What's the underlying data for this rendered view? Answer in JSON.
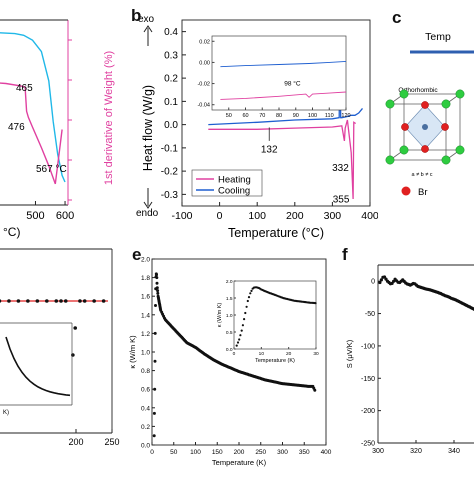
{
  "figure": {
    "panel_letters": {
      "b": "b",
      "c": "c",
      "e": "e",
      "f": "f"
    }
  },
  "colors": {
    "heating": "#e040a0",
    "cooling": "#1f5fd0",
    "tga": "#20b8e8",
    "dtg": "#e040a0",
    "fit_line": "#e02020",
    "atom_cs": "#2ecc40",
    "atom_br": "#e02020",
    "bar": "#2f5fb0"
  },
  "chart_data": [
    {
      "id": "a",
      "type": "line",
      "ylabel_right": "1st derivative of Weight (%)",
      "xlabel_fragment": "°C)",
      "x_ticks": [
        "500",
        "600"
      ],
      "annotations": [
        "465",
        "476",
        "567 °C"
      ],
      "series": [
        {
          "key": "tga",
          "x": [
            300,
            380,
            430,
            460,
            490,
            520,
            545,
            560,
            575,
            590,
            600
          ],
          "y": [
            100,
            99.5,
            99,
            98,
            95,
            88,
            70,
            45,
            25,
            12,
            8
          ]
        },
        {
          "key": "dtg",
          "x": [
            300,
            400,
            450,
            465,
            470,
            476,
            490,
            520,
            545,
            567,
            580,
            590
          ],
          "y": [
            0.0,
            -0.02,
            -0.04,
            -0.05,
            -0.25,
            -0.3,
            -0.38,
            -0.55,
            -0.7,
            -0.85,
            -0.6,
            -0.4
          ]
        }
      ]
    },
    {
      "id": "b",
      "type": "line",
      "xlabel": "Temperature (°C)",
      "ylabel": "Heat flow (W/g)",
      "exo_label": "exo",
      "endo_label": "endo",
      "xlim": [
        -100,
        400
      ],
      "ylim": [
        -0.35,
        0.45
      ],
      "x_ticks": [
        "-100",
        "0",
        "100",
        "200",
        "300",
        "400"
      ],
      "y_ticks": [
        "0.4",
        "0.3",
        "0.2",
        "0.1",
        "0.0",
        "-0.1",
        "-0.2",
        "-0.3"
      ],
      "annotations": [
        "132",
        "332",
        "355"
      ],
      "legend": [
        {
          "key": "heating",
          "label": "Heating"
        },
        {
          "key": "cooling",
          "label": "Cooling"
        }
      ],
      "legend_placement": "bottom-left",
      "series": [
        {
          "key": "heating",
          "x": [
            -30,
            100,
            200,
            300,
            325,
            332,
            334,
            340,
            350,
            355,
            357,
            362
          ],
          "y": [
            -0.02,
            -0.02,
            -0.015,
            -0.01,
            -0.005,
            -0.07,
            -0.015,
            0.02,
            -0.12,
            -0.32,
            0.01,
            0.005
          ]
        },
        {
          "key": "cooling",
          "x": [
            -30,
            100,
            200,
            300,
            318,
            320,
            322,
            325,
            340,
            350,
            360,
            370,
            380
          ],
          "y": [
            0.0,
            0.01,
            0.02,
            0.025,
            0.03,
            0.38,
            0.03,
            0.03,
            0.035,
            0.04,
            0.04,
            0.05,
            0.07
          ]
        }
      ],
      "inset": {
        "xlim": [
          40,
          120
        ],
        "ylim": [
          -0.045,
          0.025
        ],
        "x_ticks": [
          "50",
          "60",
          "70",
          "80",
          "90",
          "100",
          "110",
          "120"
        ],
        "y_ticks": [
          "0.02",
          "0.00",
          "-0.02",
          "-0.04"
        ],
        "annotation": "98 °C",
        "series": [
          {
            "key": "cooling",
            "x": [
              45,
              60,
              80,
              98,
              110,
              120
            ],
            "y": [
              -0.004,
              -0.003,
              -0.002,
              -0.001,
              0.0,
              0.001
            ]
          },
          {
            "key": "heating",
            "x": [
              45,
              60,
              80,
              96,
              98,
              100,
              110,
              120
            ],
            "y": [
              -0.035,
              -0.034,
              -0.032,
              -0.03,
              -0.033,
              -0.03,
              -0.029,
              -0.028
            ]
          }
        ]
      }
    },
    {
      "id": "c",
      "type": "other",
      "header": "Temp",
      "phase": "Orthorhombic",
      "lattice": "a ≠ b ≠ c",
      "legend_label": "Br"
    },
    {
      "id": "d",
      "type": "scatter",
      "x_ticks": [
        "200",
        "250"
      ],
      "inset_xlabel_fragment": "K)",
      "series": [
        {
          "key": "points",
          "x": [
            0,
            20,
            40,
            60,
            80,
            100,
            120,
            140,
            150,
            160,
            175,
            180,
            190,
            200,
            220,
            240
          ],
          "y": [
            1.0,
            1.0,
            1.0,
            1.0,
            1.0,
            1.0,
            1.0,
            1.0,
            1.0,
            1.0,
            0.7,
            0.85,
            1.0,
            1.0,
            1.0,
            1.0
          ]
        }
      ]
    },
    {
      "id": "e",
      "type": "scatter",
      "xlabel": "Temperature (K)",
      "ylabel": "κ (W/m K)",
      "xlim": [
        0,
        400
      ],
      "ylim": [
        0,
        2.0
      ],
      "x_ticks": [
        "0",
        "50",
        "100",
        "150",
        "200",
        "250",
        "300",
        "350",
        "400"
      ],
      "y_ticks": [
        "0.0",
        "0.2",
        "0.4",
        "0.6",
        "0.8",
        "1.0",
        "1.2",
        "1.4",
        "1.6",
        "1.8",
        "2.0"
      ],
      "series": [
        {
          "key": "kappa",
          "x": [
            5,
            6,
            7,
            8,
            9,
            10,
            11,
            12,
            14,
            16,
            18,
            20,
            25,
            30,
            40,
            50,
            60,
            70,
            80,
            100,
            120,
            140,
            160,
            180,
            200,
            220,
            240,
            260,
            280,
            300,
            320,
            340,
            360,
            370,
            375
          ],
          "y": [
            0.1,
            0.5,
            1.0,
            1.5,
            1.8,
            1.85,
            1.8,
            1.7,
            1.6,
            1.55,
            1.5,
            1.45,
            1.4,
            1.35,
            1.3,
            1.25,
            1.2,
            1.15,
            1.1,
            1.05,
            0.98,
            0.92,
            0.87,
            0.83,
            0.79,
            0.76,
            0.73,
            0.7,
            0.68,
            0.66,
            0.65,
            0.64,
            0.63,
            0.63,
            0.58
          ]
        }
      ],
      "inset": {
        "xlabel": "Temperature (K)",
        "ylabel": "κ (W/m K)",
        "xlim": [
          0,
          30
        ],
        "ylim": [
          0,
          2.0
        ],
        "x_ticks": [
          "0",
          "10",
          "20",
          "30"
        ],
        "y_ticks": [
          "0.0",
          "0.5",
          "1.0",
          "1.5",
          "2.0"
        ],
        "series": [
          {
            "key": "kappa_low",
            "x": [
              1,
              2,
              3,
              4,
              5,
              6,
              7,
              8,
              9,
              10,
              12,
              14,
              16,
              18,
              20,
              22,
              24,
              26,
              28,
              30
            ],
            "y": [
              0.1,
              0.3,
              0.6,
              1.0,
              1.4,
              1.65,
              1.8,
              1.82,
              1.8,
              1.75,
              1.68,
              1.62,
              1.56,
              1.5,
              1.46,
              1.42,
              1.4,
              1.38,
              1.36,
              1.35
            ]
          }
        ]
      }
    },
    {
      "id": "f",
      "type": "scatter",
      "ylabel": "S (μV/K)",
      "xlim": [
        300,
        360
      ],
      "ylim": [
        -250,
        25
      ],
      "x_ticks": [
        "300",
        "320",
        "340"
      ],
      "y_ticks": [
        "0",
        "-50",
        "-100",
        "-150",
        "-200",
        "-250"
      ],
      "series": [
        {
          "key": "seebeck",
          "x": [
            301,
            303,
            305,
            307,
            309,
            311,
            313,
            315,
            317,
            319,
            321,
            323,
            325,
            327,
            329,
            331,
            333,
            335,
            337,
            339,
            341,
            343,
            345,
            347,
            349,
            351,
            353,
            355,
            357
          ],
          "y": [
            -2,
            8,
            0,
            -5,
            3,
            -3,
            2,
            -4,
            -6,
            -3,
            -8,
            -10,
            -12,
            -13,
            -15,
            -17,
            -19,
            -22,
            -24,
            -27,
            -29,
            -32,
            -35,
            -38,
            -41,
            -44,
            -48,
            -52,
            -58
          ]
        }
      ]
    }
  ]
}
